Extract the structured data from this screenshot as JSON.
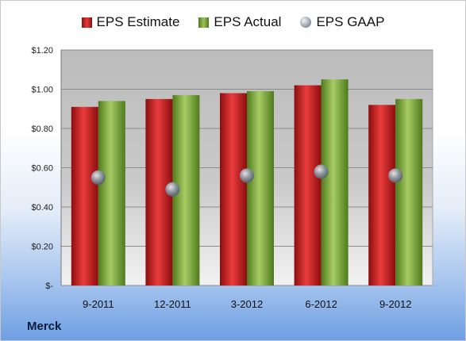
{
  "company": "Merck",
  "colors": {
    "estimate": "#d02020",
    "actual": "#7ea83c",
    "gaap": "#9aa4b0",
    "plot_bg": "#b8b8b8"
  },
  "chart_data": {
    "type": "bar",
    "categories": [
      "9-2011",
      "12-2011",
      "3-2012",
      "6-2012",
      "9-2012"
    ],
    "series": [
      {
        "name": "EPS Estimate",
        "values": [
          0.91,
          0.95,
          0.98,
          1.02,
          0.92
        ]
      },
      {
        "name": "EPS Actual",
        "values": [
          0.94,
          0.97,
          0.99,
          1.05,
          0.95
        ]
      },
      {
        "name": "EPS GAAP",
        "values": [
          0.55,
          0.49,
          0.56,
          0.58,
          0.56
        ]
      }
    ],
    "yticks": [
      {
        "value": 0,
        "label": "$-"
      },
      {
        "value": 0.2,
        "label": "$0.20"
      },
      {
        "value": 0.4,
        "label": "$0.40"
      },
      {
        "value": 0.6,
        "label": "$0.60"
      },
      {
        "value": 0.8,
        "label": "$0.80"
      },
      {
        "value": 1.0,
        "label": "$1.00"
      },
      {
        "value": 1.2,
        "label": "$1.20"
      }
    ],
    "ylim": [
      0,
      1.2
    ],
    "legend_position": "top",
    "grid": true
  }
}
